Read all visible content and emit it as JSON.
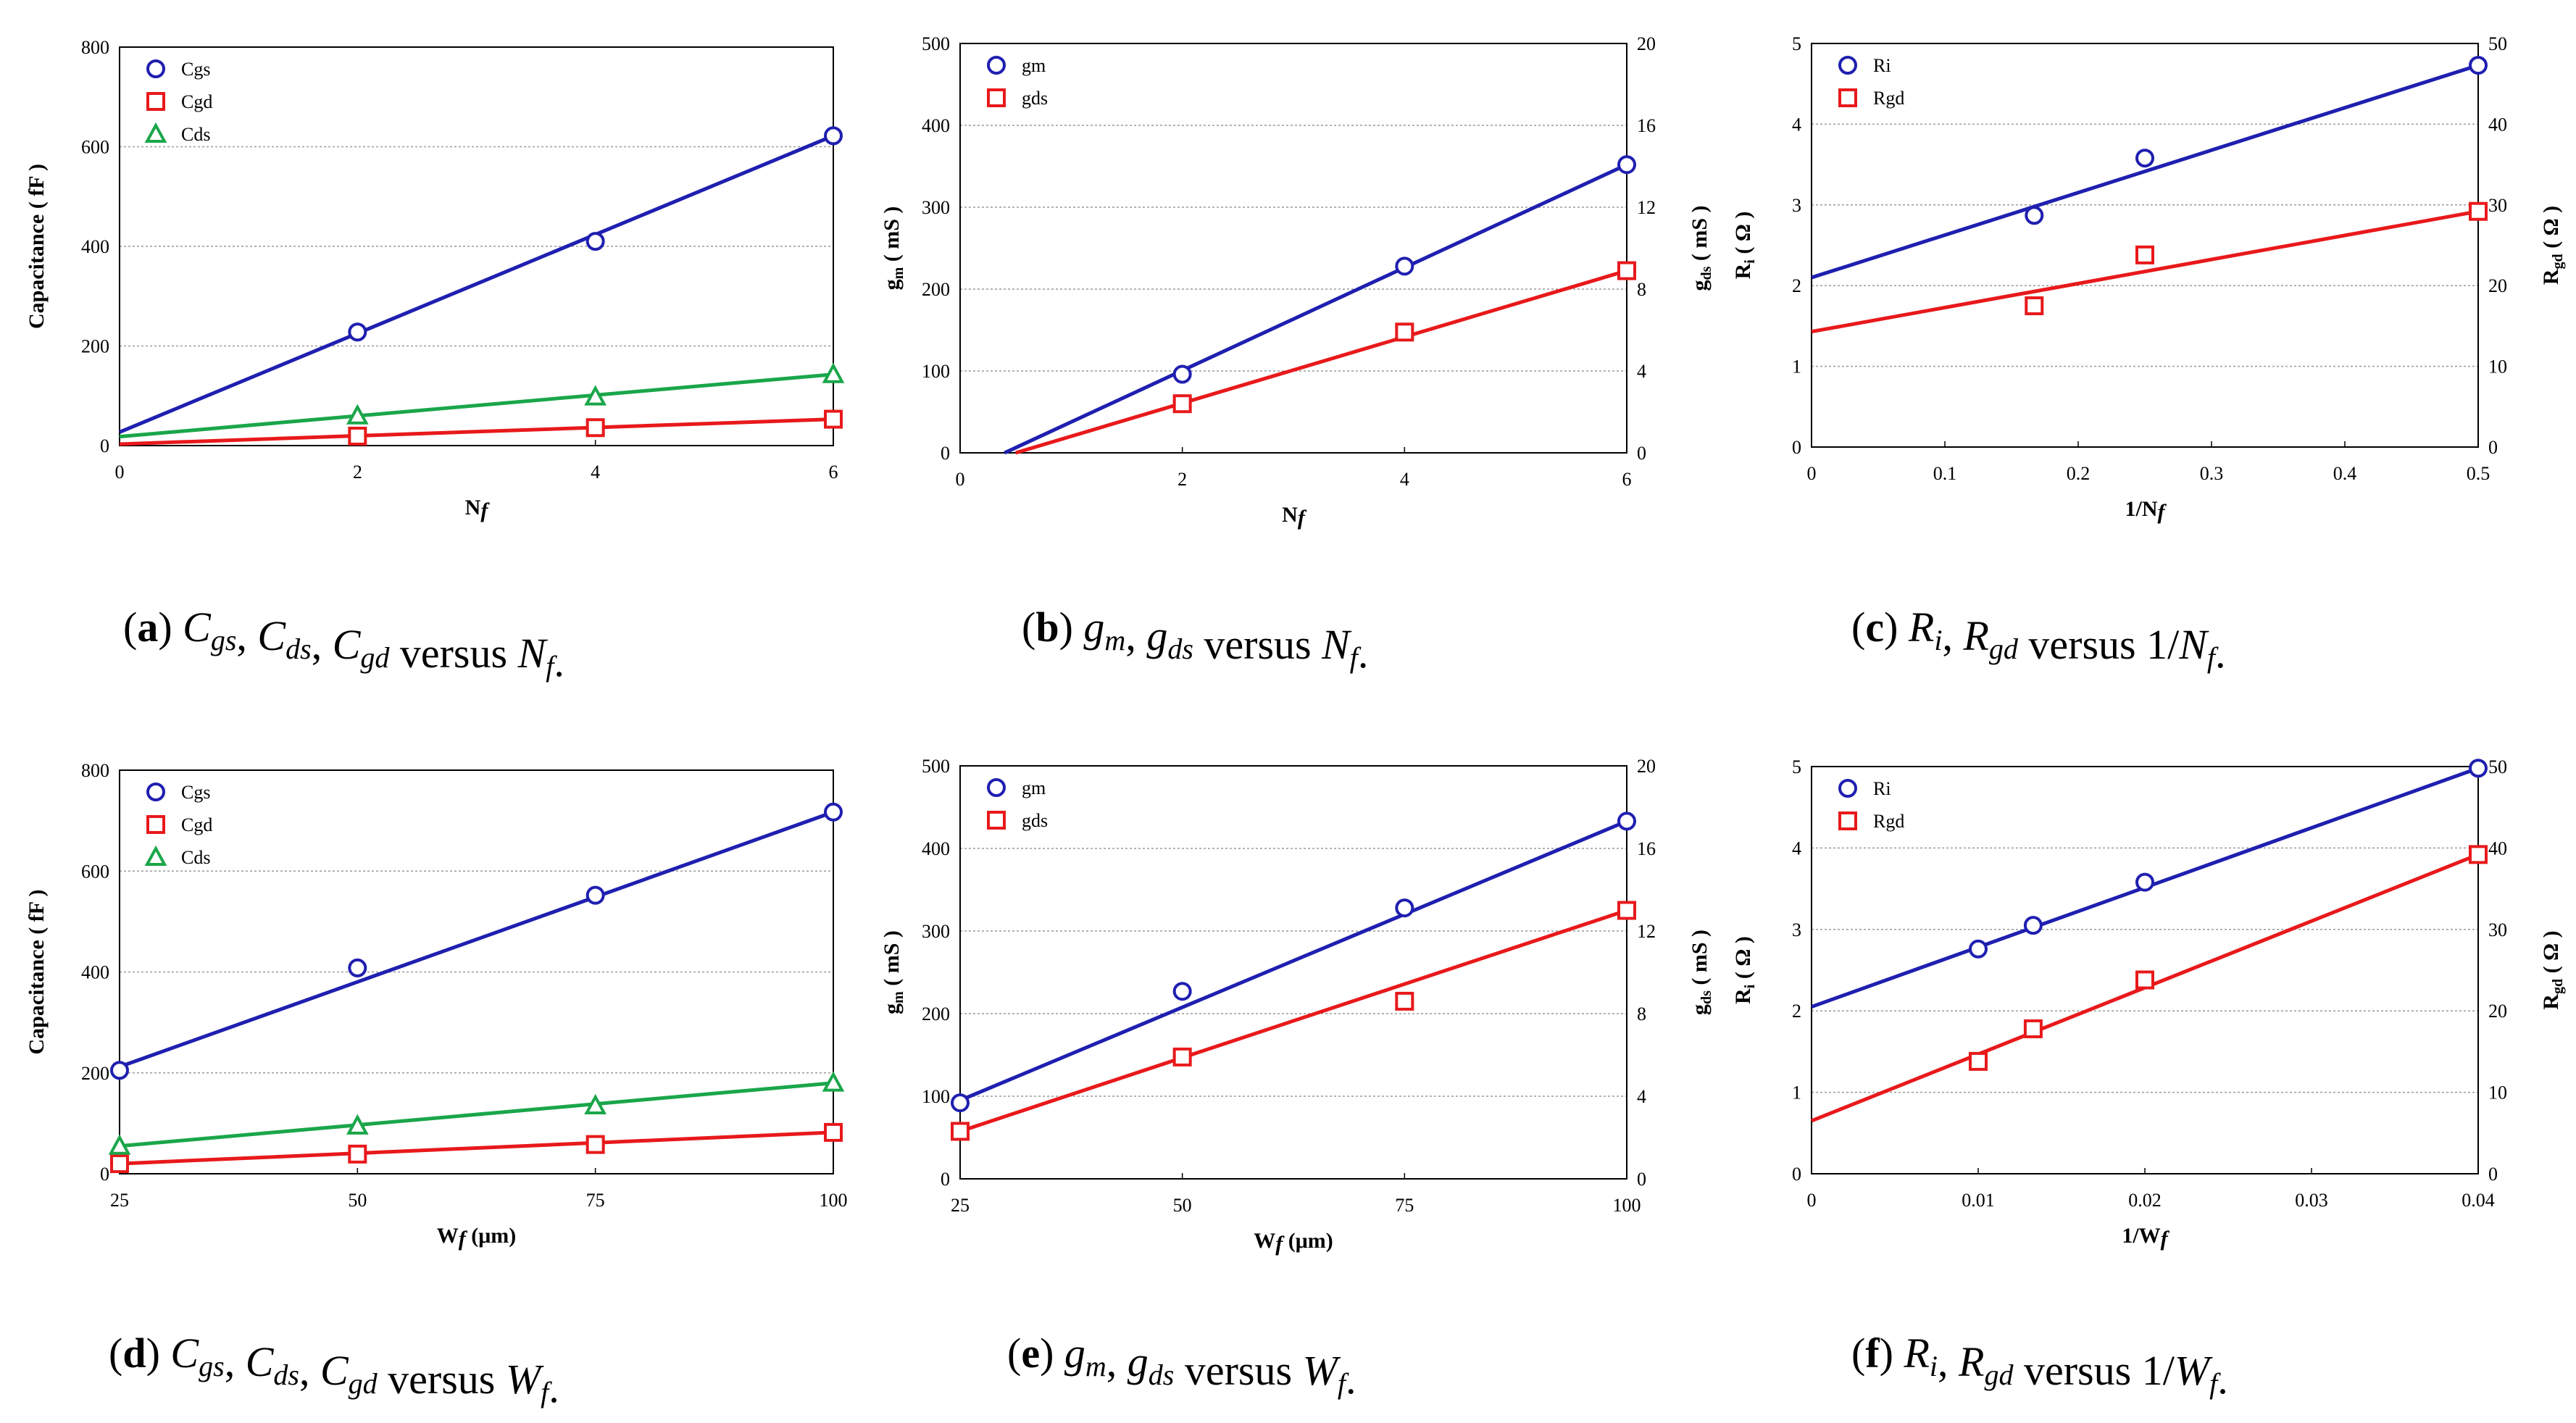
{
  "chart_data": [
    {
      "type": "scatter",
      "label_letter": "a",
      "title": "Cgs, Cds, Cgd versus Nf",
      "xlabel": "Nf",
      "ylabel": "Capacitance ( fF )",
      "xlim": [
        0,
        6
      ],
      "xticks": [
        "0",
        "2",
        "4",
        "6"
      ],
      "ylim": [
        0,
        800
      ],
      "yticks": [
        "0",
        "200",
        "400",
        "600",
        "800"
      ],
      "series": [
        {
          "name": "Cgs",
          "marker": "circle",
          "color": "#1f1fb0",
          "x": [
            2,
            4,
            6
          ],
          "y": [
            228,
            410,
            622
          ],
          "fit": [
            [
              0,
              27
            ],
            [
              6,
              622
            ]
          ]
        },
        {
          "name": "Cgd",
          "marker": "square",
          "color": "#e8191b",
          "x": [
            2,
            4,
            6
          ],
          "y": [
            19,
            36,
            53
          ],
          "fit": [
            [
              0,
              3
            ],
            [
              6,
              53
            ]
          ]
        },
        {
          "name": "Cds",
          "marker": "triangle",
          "color": "#1aa64a",
          "x": [
            2,
            4,
            6
          ],
          "y": [
            60,
            98,
            143
          ],
          "fit": [
            [
              0,
              18
            ],
            [
              6,
              143
            ]
          ]
        }
      ]
    },
    {
      "type": "scatter",
      "label_letter": "b",
      "title": "gm, gds versus Nf",
      "xlabel": "Nf",
      "ylabel": "gm ( mS )",
      "y2label": "gds ( mS )",
      "xlim": [
        0,
        6
      ],
      "xticks": [
        "0",
        "2",
        "4",
        "6"
      ],
      "ylim": [
        0,
        500
      ],
      "yticks": [
        "0",
        "100",
        "200",
        "300",
        "400",
        "500"
      ],
      "y2lim": [
        0,
        20
      ],
      "y2ticks": [
        "0",
        "4",
        "8",
        "12",
        "16",
        "20"
      ],
      "series": [
        {
          "name": "gm",
          "marker": "circle",
          "color": "#1f1fb0",
          "axis": "left",
          "x": [
            2,
            4,
            6
          ],
          "y": [
            96,
            228,
            352
          ],
          "fit": [
            [
              0.4,
              0
            ],
            [
              6,
              352
            ]
          ]
        },
        {
          "name": "gds",
          "marker": "square",
          "color": "#e8191b",
          "axis": "right",
          "x": [
            2,
            4,
            6
          ],
          "y": [
            2.4,
            5.9,
            8.9
          ],
          "fit": [
            [
              0.5,
              0
            ],
            [
              6,
              8.9
            ]
          ]
        }
      ]
    },
    {
      "type": "scatter",
      "label_letter": "c",
      "title": "Ri, Rgd versus 1/Nf",
      "xlabel": "1/Nf",
      "ylabel": "Ri ( Ω )",
      "y2label": "Rgd ( Ω )",
      "xlim": [
        0,
        0.5
      ],
      "xticks": [
        "0",
        "0.1",
        "0.2",
        "0.3",
        "0.4",
        "0.5"
      ],
      "ylim": [
        0,
        5
      ],
      "yticks": [
        "0",
        "1",
        "2",
        "3",
        "4",
        "5"
      ],
      "y2lim": [
        0,
        50
      ],
      "y2ticks": [
        "0",
        "10",
        "20",
        "30",
        "40",
        "50"
      ],
      "series": [
        {
          "name": "Ri",
          "marker": "circle",
          "color": "#1f1fb0",
          "axis": "left",
          "x": [
            0.167,
            0.25,
            0.5
          ],
          "y": [
            2.87,
            3.58,
            4.73
          ],
          "fit": [
            [
              0,
              2.1
            ],
            [
              0.5,
              4.73
            ]
          ]
        },
        {
          "name": "Rgd",
          "marker": "square",
          "color": "#e8191b",
          "axis": "right",
          "x": [
            0.167,
            0.25,
            0.5
          ],
          "y": [
            17.5,
            23.8,
            29.2
          ],
          "fit": [
            [
              0,
              14.3
            ],
            [
              0.5,
              29.2
            ]
          ]
        }
      ]
    },
    {
      "type": "scatter",
      "label_letter": "d",
      "title": "Cgs, Cds, Cgd versus Wf",
      "xlabel": "Wf (μm)",
      "ylabel": "Capacitance ( fF )",
      "xlim": [
        25,
        100
      ],
      "xticks": [
        "25",
        "50",
        "75",
        "100"
      ],
      "ylim": [
        0,
        800
      ],
      "yticks": [
        "0",
        "200",
        "400",
        "600",
        "800"
      ],
      "series": [
        {
          "name": "Cgs",
          "marker": "circle",
          "color": "#1f1fb0",
          "x": [
            25,
            50,
            75,
            100
          ],
          "y": [
            205,
            408,
            552,
            717
          ],
          "fit": [
            [
              25,
              212
            ],
            [
              100,
              717
            ]
          ]
        },
        {
          "name": "Cgd",
          "marker": "square",
          "color": "#e8191b",
          "x": [
            25,
            50,
            75,
            100
          ],
          "y": [
            20,
            39,
            58,
            82
          ],
          "fit": [
            [
              25,
              20
            ],
            [
              100,
              82
            ]
          ]
        },
        {
          "name": "Cds",
          "marker": "triangle",
          "color": "#1aa64a",
          "x": [
            25,
            50,
            75,
            100
          ],
          "y": [
            55,
            95,
            135,
            180
          ],
          "fit": [
            [
              25,
              55
            ],
            [
              100,
              180
            ]
          ]
        }
      ]
    },
    {
      "type": "scatter",
      "label_letter": "e",
      "title": "gm, gds versus Wf",
      "xlabel": "Wf (μm)",
      "ylabel": "gm ( mS )",
      "y2label": "gds ( mS )",
      "xlim": [
        25,
        100
      ],
      "xticks": [
        "25",
        "50",
        "75",
        "100"
      ],
      "ylim": [
        0,
        500
      ],
      "yticks": [
        "0",
        "100",
        "200",
        "300",
        "400",
        "500"
      ],
      "y2lim": [
        0,
        20
      ],
      "y2ticks": [
        "0",
        "4",
        "8",
        "12",
        "16",
        "20"
      ],
      "series": [
        {
          "name": "gm",
          "marker": "circle",
          "color": "#1f1fb0",
          "axis": "left",
          "x": [
            25,
            50,
            75,
            100
          ],
          "y": [
            92,
            227,
            328,
            433
          ],
          "fit": [
            [
              25,
              95
            ],
            [
              100,
              433
            ]
          ]
        },
        {
          "name": "gds",
          "marker": "square",
          "color": "#e8191b",
          "axis": "right",
          "x": [
            25,
            50,
            75,
            100
          ],
          "y": [
            2.3,
            5.9,
            8.6,
            13.0
          ],
          "fit": [
            [
              25,
              2.3
            ],
            [
              100,
              13.0
            ]
          ]
        }
      ]
    },
    {
      "type": "scatter",
      "label_letter": "f",
      "title": "Ri, Rgd versus 1/Wf",
      "xlabel": "1/Wf",
      "ylabel": "Ri ( Ω )",
      "y2label": "Rgd ( Ω )",
      "xlim": [
        0,
        0.04
      ],
      "xticks": [
        "0",
        "0.01",
        "0.02",
        "0.03",
        "0.04"
      ],
      "ylim": [
        0,
        5
      ],
      "yticks": [
        "0",
        "1",
        "2",
        "3",
        "4",
        "5"
      ],
      "y2lim": [
        0,
        50
      ],
      "y2ticks": [
        "0",
        "10",
        "20",
        "30",
        "40",
        "50"
      ],
      "series": [
        {
          "name": "Ri",
          "marker": "circle",
          "color": "#1f1fb0",
          "axis": "left",
          "x": [
            0.01,
            0.0133,
            0.02,
            0.04
          ],
          "y": [
            2.76,
            3.05,
            3.58,
            4.98
          ],
          "fit": [
            [
              0,
              2.05
            ],
            [
              0.04,
              4.98
            ]
          ]
        },
        {
          "name": "Rgd",
          "marker": "square",
          "color": "#e8191b",
          "axis": "right",
          "x": [
            0.01,
            0.0133,
            0.02,
            0.04
          ],
          "y": [
            13.8,
            17.8,
            23.8,
            39.2
          ],
          "fit": [
            [
              0,
              6.5
            ],
            [
              0.04,
              39.2
            ]
          ]
        }
      ]
    }
  ]
}
